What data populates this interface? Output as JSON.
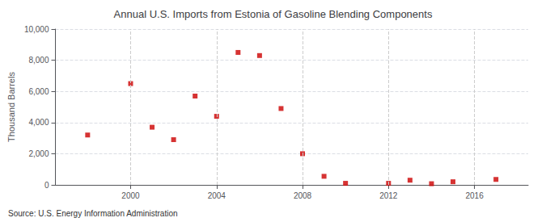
{
  "chart_data": {
    "type": "scatter",
    "title": "Annual U.S. Imports from Estonia of Gasoline Blending Components",
    "ylabel": "Thousand Barrels",
    "source": "Source: U.S. Energy Information Administration",
    "x": [
      1998,
      2000,
      2001,
      2002,
      2003,
      2004,
      2005,
      2006,
      2007,
      2008,
      2009,
      2010,
      2012,
      2013,
      2014,
      2015,
      2017
    ],
    "values": [
      3200,
      6500,
      3700,
      2900,
      5700,
      4400,
      8500,
      8300,
      4900,
      2000,
      550,
      100,
      100,
      300,
      75,
      200,
      350
    ],
    "color": "#cc0000",
    "marker": "square",
    "xlim": [
      1996.5,
      2018.5
    ],
    "xticks": [
      2000,
      2004,
      2008,
      2012,
      2016
    ],
    "ylim": [
      0,
      10000
    ],
    "yticks": [
      0,
      {
        "value": 2000,
        "label": "2,000"
      },
      {
        "value": 4000,
        "label": "4,000"
      },
      {
        "value": 6000,
        "label": "6,000"
      },
      {
        "value": 8000,
        "label": "8,000"
      },
      {
        "value": 10000,
        "label": "10,000"
      }
    ],
    "grid": true
  }
}
